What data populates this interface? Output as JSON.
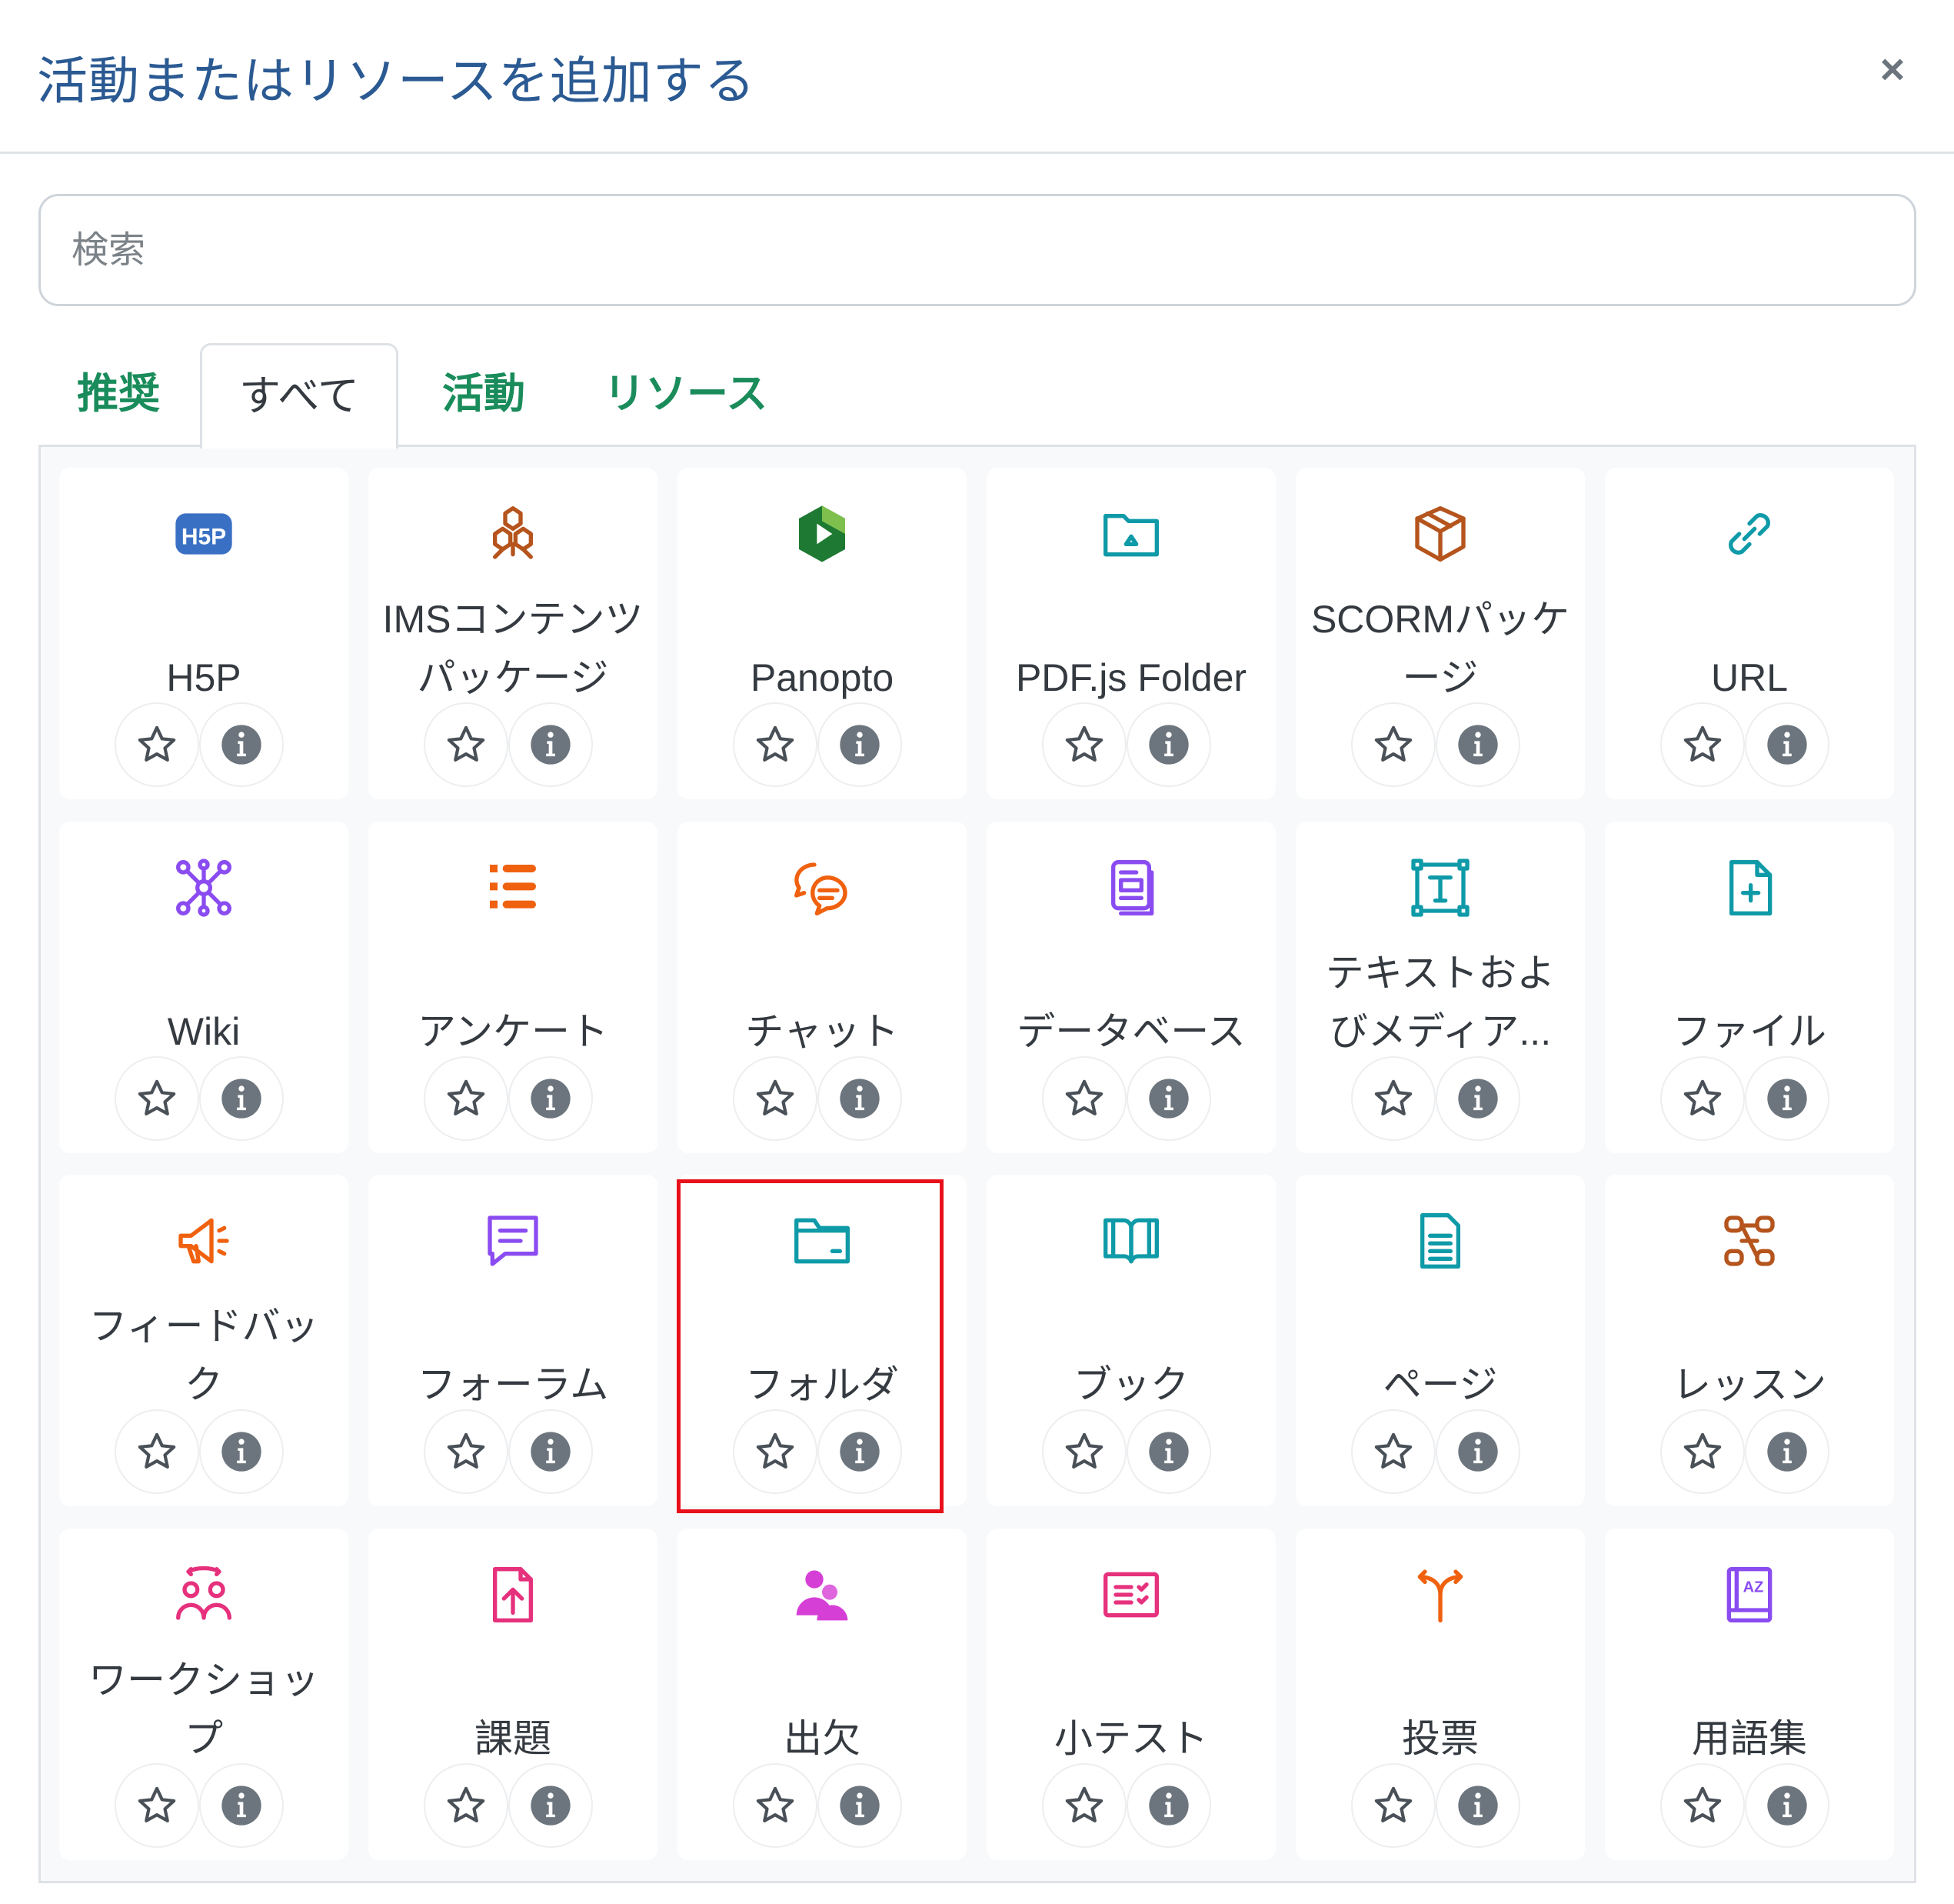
{
  "dialog": {
    "title": "活動またはリソースを追加する",
    "close_label": "×"
  },
  "search": {
    "placeholder": "検索",
    "value": ""
  },
  "tabs": [
    {
      "label": "推奨",
      "active": false
    },
    {
      "label": "すべて",
      "active": true
    },
    {
      "label": "活動",
      "active": false
    },
    {
      "label": "リソース",
      "active": false
    }
  ],
  "colors": {
    "title": "#2b5a93",
    "tab": "#1a8c5b",
    "highlight": "#e8101a",
    "info": "#6c757d"
  },
  "items": [
    {
      "name": "H5P",
      "icon": "h5p-icon",
      "color": "#3a70c4"
    },
    {
      "name": "IMSコンテンツパッケージ",
      "icon": "cubes-icon",
      "color": "#b5541c"
    },
    {
      "name": "Panopto",
      "icon": "panopto-icon",
      "color": "#1e7a32"
    },
    {
      "name": "PDF.js Folder",
      "icon": "folder-image-icon",
      "color": "#0f9aa8"
    },
    {
      "name": "SCORMパッケージ",
      "icon": "box-icon",
      "color": "#b5541c"
    },
    {
      "name": "URL",
      "icon": "link-icon",
      "color": "#0f9aa8"
    },
    {
      "name": "Wiki",
      "icon": "network-icon",
      "color": "#8a4cf0"
    },
    {
      "name": "アンケート",
      "icon": "list-icon",
      "color": "#f0610f"
    },
    {
      "name": "チャット",
      "icon": "chat-icon",
      "color": "#f0610f"
    },
    {
      "name": "データベース",
      "icon": "database-icon",
      "color": "#8a4cf0"
    },
    {
      "name": "テキストおよびメディア...",
      "icon": "text-frame-icon",
      "color": "#0f9aa8"
    },
    {
      "name": "ファイル",
      "icon": "file-plus-icon",
      "color": "#0f9aa8"
    },
    {
      "name": "フィードバック",
      "icon": "megaphone-icon",
      "color": "#f0610f"
    },
    {
      "name": "フォーラム",
      "icon": "forum-icon",
      "color": "#8a4cf0"
    },
    {
      "name": "フォルダ",
      "icon": "folder-icon",
      "color": "#0f9aa8",
      "highlighted": true
    },
    {
      "name": "ブック",
      "icon": "book-icon",
      "color": "#0f9aa8"
    },
    {
      "name": "ページ",
      "icon": "page-icon",
      "color": "#0f9aa8"
    },
    {
      "name": "レッスン",
      "icon": "lesson-icon",
      "color": "#b5541c"
    },
    {
      "name": "ワークショップ",
      "icon": "workshop-icon",
      "color": "#e6317d"
    },
    {
      "name": "課題",
      "icon": "upload-file-icon",
      "color": "#e6317d"
    },
    {
      "name": "出欠",
      "icon": "attendance-icon",
      "color": "#d63fd6"
    },
    {
      "name": "小テスト",
      "icon": "quiz-icon",
      "color": "#e6317d"
    },
    {
      "name": "投票",
      "icon": "choice-icon",
      "color": "#f0610f"
    },
    {
      "name": "用語集",
      "icon": "glossary-icon",
      "color": "#8a4cf0"
    }
  ]
}
